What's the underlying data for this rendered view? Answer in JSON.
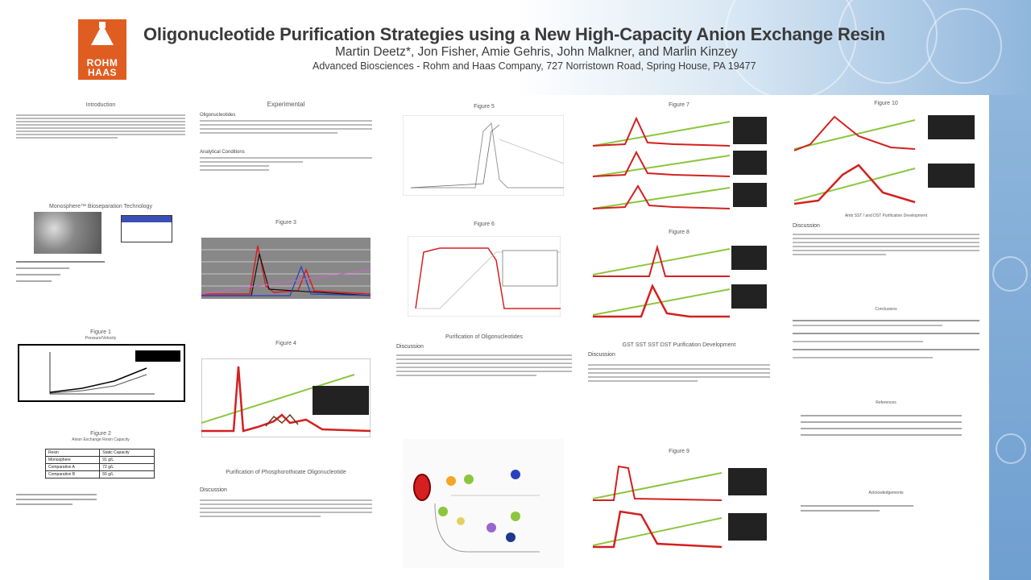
{
  "header": {
    "title": "Oligonucleotide Purification Strategies using a New High-Capacity Anion Exchange Resin",
    "authors": "Martin Deetz*, Jon Fisher, Amie Gehris, John Malkner, and Marlin Kinzey",
    "affiliation": "Advanced Biosciences - Rohm and Haas Company, 727 Norristown Road, Spring House, PA 19477",
    "logo_line1": "ROHM",
    "logo_line2": "HAAS"
  },
  "sections": {
    "introduction": "Introduction",
    "resin_tech": "Monosphere™ Bioseparation Technology",
    "figure1": "Figure 1",
    "figure1_caption": "Pressure/Velocity",
    "figure2": "Figure 2",
    "figure2_caption": "Anion Exchange Resin Capacity",
    "experimental": "Experimental",
    "oligo_synthesis": "Oligonucleotides",
    "analytical": "Analytical Conditions",
    "figure3": "Figure 3",
    "figure3_caption": "Purification of Phosphorothioate Oligonucleotide",
    "figure4": "Figure 4",
    "figure4_caption": "Purification of Phosphorothioate Oligonucleotide",
    "ps_purification": "Purification of Phosphorothioate Oligonucleotide",
    "discussion": "Discussion",
    "figure5": "Figure 5",
    "figure6": "Figure 6",
    "purification_oligos": "Purification of Oligonucleotides",
    "figure7": "Figure 7",
    "figure8": "Figure 8",
    "figure9": "Figure 9",
    "figure10": "Figure 10",
    "gradient_title": "GST SST SST DST Purification Development",
    "figure11_footer": "Amb SST / and DST Purification Development",
    "conclusions": "Conclusions",
    "references": "References",
    "acknowledgements": "Acknowledgements"
  },
  "table2": {
    "headers": [
      "Resin",
      "Static Capacity"
    ],
    "rows": [
      [
        "Monosphere",
        "91 g/L"
      ],
      [
        "Comparative A",
        "72 g/L"
      ],
      [
        "Comparative B",
        "55 g/L"
      ]
    ]
  },
  "colors": {
    "logo": "#e05d21",
    "trace_red": "#d42020",
    "gradient_green": "#8cc63f",
    "banner_blue": "#8fb6dc"
  }
}
